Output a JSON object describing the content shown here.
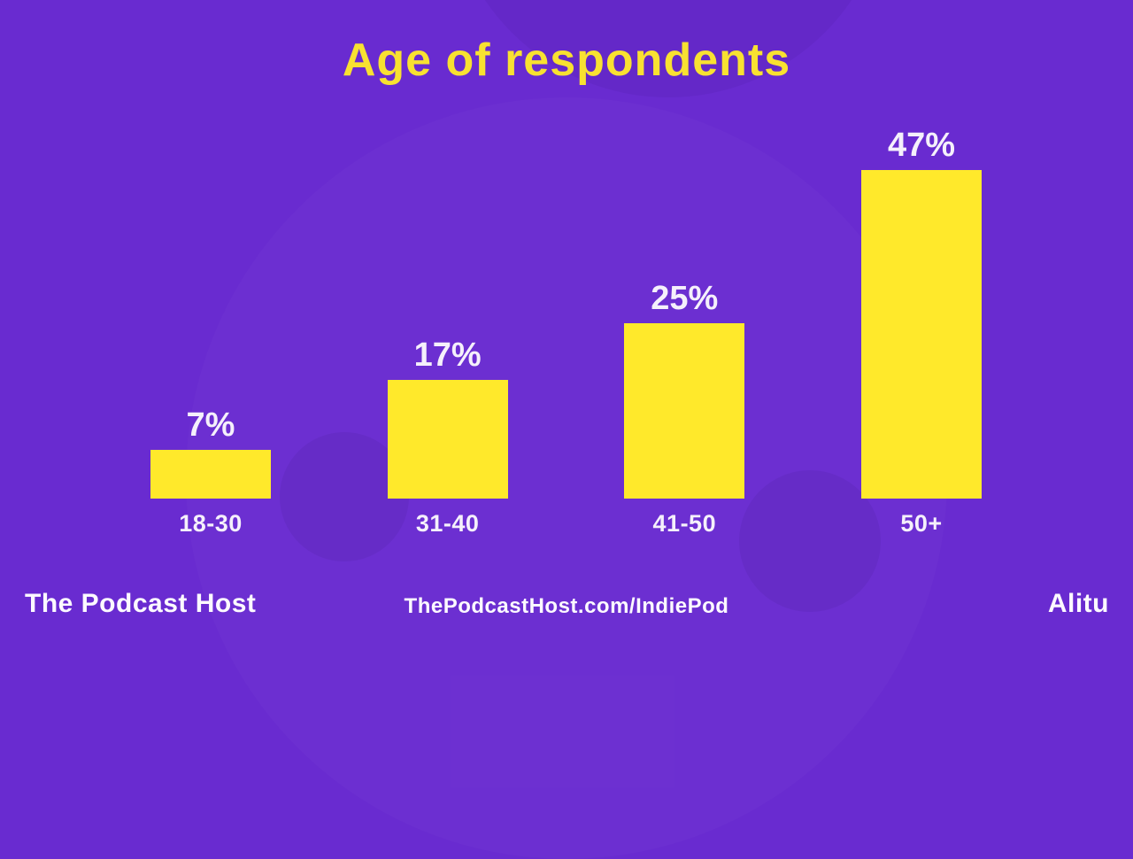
{
  "title": "Age of respondents",
  "chart_data": {
    "type": "bar",
    "title": "Age of respondents",
    "categories": [
      "18-30",
      "31-40",
      "41-50",
      "50+"
    ],
    "values": [
      7,
      17,
      25,
      47
    ],
    "data_labels": [
      "7%",
      "17%",
      "25%",
      "47%"
    ],
    "xlabel": "",
    "ylabel": "",
    "ylim": [
      0,
      50
    ],
    "grid": false,
    "legend": false,
    "layout_hints": {
      "value_labels_position": "above-bars",
      "category_labels_position": "below-bars",
      "axes_hidden": true
    },
    "colors": {
      "background": "#692BD0",
      "bar": "#FFE92B",
      "title_text": "#F8E131",
      "value_text": "#F5F0FB",
      "category_text": "#F5F0FB"
    }
  },
  "footer": {
    "brand_left": "The Podcast Host",
    "center_url": "ThePodcastHost.com/IndiePod",
    "brand_right": "Alitu"
  }
}
